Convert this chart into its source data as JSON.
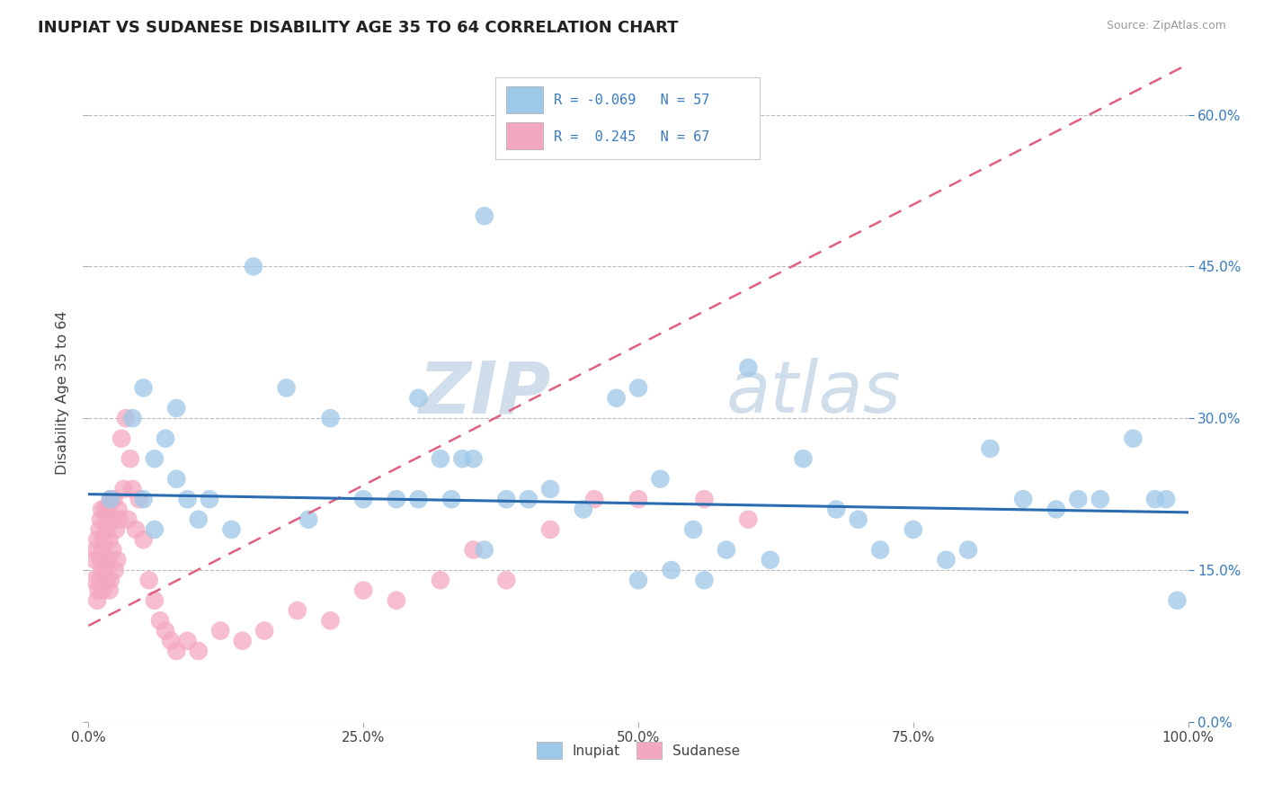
{
  "title": "INUPIAT VS SUDANESE DISABILITY AGE 35 TO 64 CORRELATION CHART",
  "source": "Source: ZipAtlas.com",
  "ylabel": "Disability Age 35 to 64",
  "xlim": [
    0.0,
    1.0
  ],
  "ylim": [
    0.0,
    0.65
  ],
  "yticks": [
    0.0,
    0.15,
    0.3,
    0.45,
    0.6
  ],
  "xticks": [
    0.0,
    0.25,
    0.5,
    0.75,
    1.0
  ],
  "xtick_labels": [
    "0.0%",
    "25.0%",
    "50.0%",
    "75.0%",
    "100.0%"
  ],
  "ytick_labels": [
    "0.0%",
    "15.0%",
    "30.0%",
    "45.0%",
    "60.0%"
  ],
  "inupiat_color": "#9ec8e8",
  "sudanese_color": "#f4a8c0",
  "inupiat_line_color": "#2b6cb0",
  "sudanese_line_color": "#e06080",
  "legend_R1": "-0.069",
  "legend_N1": "57",
  "legend_R2": "0.245",
  "legend_N2": "67",
  "watermark_zip": "ZIP",
  "watermark_atlas": "atlas",
  "background_color": "#ffffff",
  "grid_color": "#bbbbbb",
  "inupiat_x": [
    0.02,
    0.04,
    0.05,
    0.05,
    0.06,
    0.06,
    0.07,
    0.08,
    0.08,
    0.09,
    0.1,
    0.11,
    0.13,
    0.15,
    0.18,
    0.2,
    0.22,
    0.25,
    0.28,
    0.3,
    0.33,
    0.35,
    0.36,
    0.38,
    0.4,
    0.42,
    0.45,
    0.48,
    0.5,
    0.52,
    0.55,
    0.58,
    0.6,
    0.62,
    0.65,
    0.68,
    0.7,
    0.72,
    0.75,
    0.78,
    0.8,
    0.82,
    0.85,
    0.88,
    0.9,
    0.92,
    0.95,
    0.97,
    0.98,
    0.99,
    0.5,
    0.53,
    0.56,
    0.3,
    0.32,
    0.34,
    0.36
  ],
  "inupiat_y": [
    0.22,
    0.3,
    0.33,
    0.22,
    0.26,
    0.19,
    0.28,
    0.31,
    0.24,
    0.22,
    0.2,
    0.22,
    0.19,
    0.45,
    0.33,
    0.2,
    0.3,
    0.22,
    0.22,
    0.32,
    0.22,
    0.26,
    0.5,
    0.22,
    0.22,
    0.23,
    0.21,
    0.32,
    0.33,
    0.24,
    0.19,
    0.17,
    0.35,
    0.16,
    0.26,
    0.21,
    0.2,
    0.17,
    0.19,
    0.16,
    0.17,
    0.27,
    0.22,
    0.21,
    0.22,
    0.22,
    0.28,
    0.22,
    0.22,
    0.12,
    0.14,
    0.15,
    0.14,
    0.22,
    0.26,
    0.26,
    0.17
  ],
  "sudanese_x": [
    0.005,
    0.006,
    0.007,
    0.008,
    0.008,
    0.009,
    0.01,
    0.01,
    0.011,
    0.011,
    0.012,
    0.012,
    0.013,
    0.013,
    0.014,
    0.015,
    0.015,
    0.016,
    0.016,
    0.017,
    0.017,
    0.018,
    0.018,
    0.019,
    0.019,
    0.02,
    0.02,
    0.021,
    0.022,
    0.023,
    0.024,
    0.025,
    0.026,
    0.027,
    0.028,
    0.03,
    0.032,
    0.034,
    0.036,
    0.038,
    0.04,
    0.043,
    0.046,
    0.05,
    0.055,
    0.06,
    0.065,
    0.07,
    0.075,
    0.08,
    0.09,
    0.1,
    0.12,
    0.14,
    0.16,
    0.19,
    0.22,
    0.25,
    0.28,
    0.32,
    0.35,
    0.38,
    0.42,
    0.46,
    0.5,
    0.56,
    0.6
  ],
  "sudanese_y": [
    0.14,
    0.16,
    0.17,
    0.12,
    0.18,
    0.13,
    0.19,
    0.14,
    0.16,
    0.2,
    0.15,
    0.21,
    0.17,
    0.13,
    0.18,
    0.15,
    0.21,
    0.16,
    0.2,
    0.14,
    0.19,
    0.16,
    0.21,
    0.13,
    0.18,
    0.22,
    0.14,
    0.2,
    0.17,
    0.22,
    0.15,
    0.19,
    0.16,
    0.21,
    0.2,
    0.28,
    0.23,
    0.3,
    0.2,
    0.26,
    0.23,
    0.19,
    0.22,
    0.18,
    0.14,
    0.12,
    0.1,
    0.09,
    0.08,
    0.07,
    0.08,
    0.07,
    0.09,
    0.08,
    0.09,
    0.11,
    0.1,
    0.13,
    0.12,
    0.14,
    0.17,
    0.14,
    0.19,
    0.22,
    0.22,
    0.22,
    0.2
  ]
}
